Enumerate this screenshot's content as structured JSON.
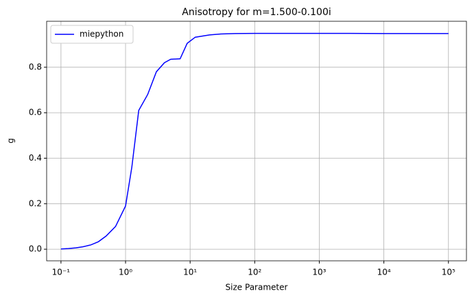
{
  "chart_data": {
    "type": "line",
    "title": "Anisotropy for m=1.500-0.100i",
    "xlabel": "Size Parameter",
    "ylabel": "g",
    "xscale": "log",
    "grid": true,
    "legend": "upper left",
    "x": [
      0.1,
      0.13,
      0.17,
      0.22,
      0.29,
      0.38,
      0.5,
      0.7,
      1.0,
      1.25,
      1.6,
      2.2,
      3,
      4,
      5,
      7,
      9,
      12,
      20,
      30,
      50,
      100,
      300,
      1000,
      3000,
      10000,
      30000,
      100000
    ],
    "series": [
      {
        "name": "miepython",
        "color": "#0000ff",
        "values": [
          0.001,
          0.003,
          0.006,
          0.011,
          0.019,
          0.033,
          0.058,
          0.1,
          0.19,
          0.36,
          0.61,
          0.68,
          0.78,
          0.82,
          0.835,
          0.837,
          0.905,
          0.932,
          0.942,
          0.946,
          0.948,
          0.949,
          0.949,
          0.949,
          0.949,
          0.948,
          0.948,
          0.948
        ]
      }
    ],
    "xlim": [
      0.06,
      190000
    ],
    "ylim": [
      -0.051,
      1.002
    ],
    "xticks": [
      {
        "value": 0.1,
        "label": "10⁻¹"
      },
      {
        "value": 1,
        "label": "10⁰"
      },
      {
        "value": 10,
        "label": "10¹"
      },
      {
        "value": 100,
        "label": "10²"
      },
      {
        "value": 1000,
        "label": "10³"
      },
      {
        "value": 10000,
        "label": "10⁴"
      },
      {
        "value": 100000,
        "label": "10⁵"
      }
    ],
    "yticks": [
      {
        "value": 0,
        "label": "0.0"
      },
      0.2,
      0.4,
      0.6,
      0.8
    ]
  }
}
